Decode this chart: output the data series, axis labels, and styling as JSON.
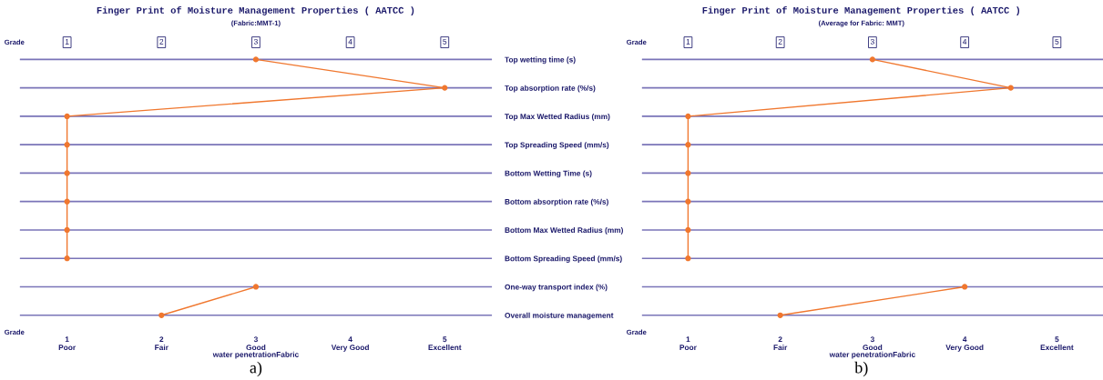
{
  "chart_data": [
    {
      "type": "line",
      "title": "Finger Print of Moisture Management Properties ( AATCC )",
      "subtitle": "(Fabric:MMT-1)",
      "xlabel": "water penetrationFabric",
      "categories": [
        "Top wetting time (s)",
        "Top absorption rate (%/s)",
        "Top Max Wetted Radius (mm)",
        "Top Spreading Speed (mm/s)",
        "Bottom Wetting Time (s)",
        "Bottom absorption rate (%/s)",
        "Bottom Max Wetted Radius (mm)",
        "Bottom Spreading Speed (mm/s)",
        "One-way transport index (%)",
        "Overall moisture management"
      ],
      "orientation": "horizontal",
      "series": [
        {
          "color": "#f0772e",
          "values": [
            3,
            5,
            1,
            1,
            1,
            1,
            1,
            1,
            null,
            null
          ]
        },
        {
          "color": "#f0772e",
          "values": [
            null,
            null,
            null,
            null,
            null,
            null,
            null,
            null,
            3,
            2
          ]
        }
      ],
      "xlim": [
        0.5,
        5.5
      ],
      "xticks": [
        {
          "value": 1,
          "label": "1\nPoor"
        },
        {
          "value": 2,
          "label": "2\nFair"
        },
        {
          "value": 3,
          "label": "3\nGood"
        },
        {
          "value": 4,
          "label": "4\nVery Good"
        },
        {
          "value": 5,
          "label": "5\nExcellent"
        }
      ],
      "x2lim": [
        0.5,
        5.5
      ],
      "x2ticks": [
        1,
        2,
        3,
        4,
        5
      ],
      "grid": "y",
      "marker": "circle",
      "line_style": "solid",
      "annotations": [
        "Grade",
        "Grade",
        "a)"
      ]
    },
    {
      "type": "line",
      "title": "Finger Print of Moisture Management Properties ( AATCC )",
      "subtitle": "(Average for Fabric: MMT)",
      "xlabel": "water penetrationFabric",
      "categories": [
        null,
        null,
        null,
        null,
        null,
        null,
        null,
        null,
        null,
        null
      ],
      "orientation": "horizontal",
      "series": [
        {
          "color": "#f0772e",
          "values": [
            3,
            4.5,
            1,
            1,
            1,
            1,
            1,
            1,
            null,
            null
          ]
        },
        {
          "color": "#f0772e",
          "values": [
            null,
            null,
            null,
            null,
            null,
            null,
            null,
            null,
            4,
            2
          ]
        }
      ],
      "xlim": [
        0.5,
        5.5
      ],
      "xticks": [
        {
          "value": 1,
          "label": "1\nPoor"
        },
        {
          "value": 2,
          "label": "2\nFair"
        },
        {
          "value": 3,
          "label": "3\nGood"
        },
        {
          "value": 4,
          "label": "4\nVery Good"
        },
        {
          "value": 5,
          "label": "5\nExcellent"
        }
      ],
      "x2lim": [
        0.5,
        5.5
      ],
      "x2ticks": [
        1,
        2,
        3,
        4,
        5
      ],
      "grid": "y",
      "marker": "circle",
      "line_style": "solid",
      "annotations": [
        "Grade",
        "Grade",
        "b)"
      ]
    }
  ]
}
